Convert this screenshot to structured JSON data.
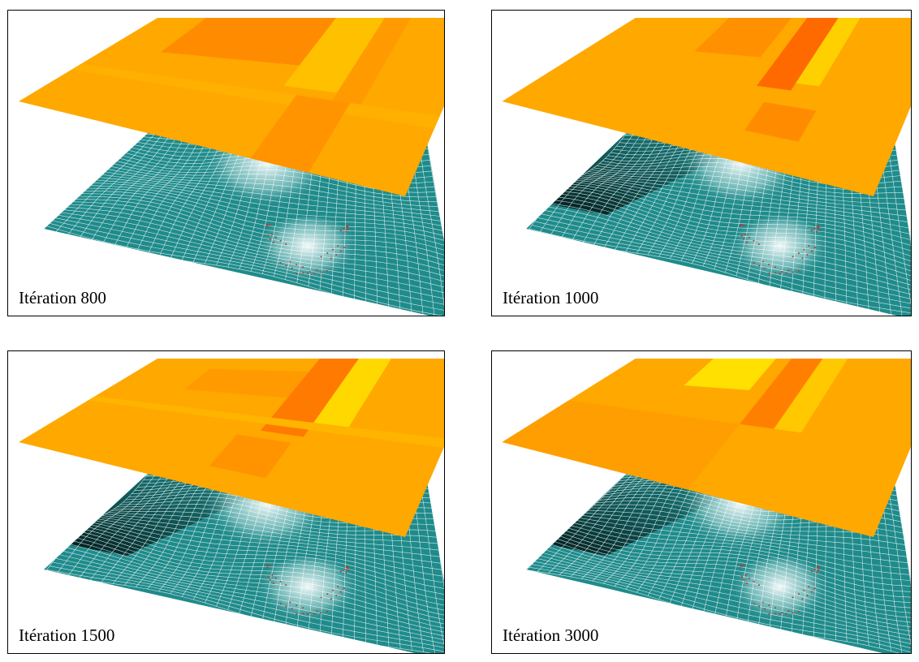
{
  "panels": [
    {
      "label": "Itération 800"
    },
    {
      "label": "Itération 1000"
    },
    {
      "label": "Itération 1500"
    },
    {
      "label": "Itération 3000"
    }
  ]
}
